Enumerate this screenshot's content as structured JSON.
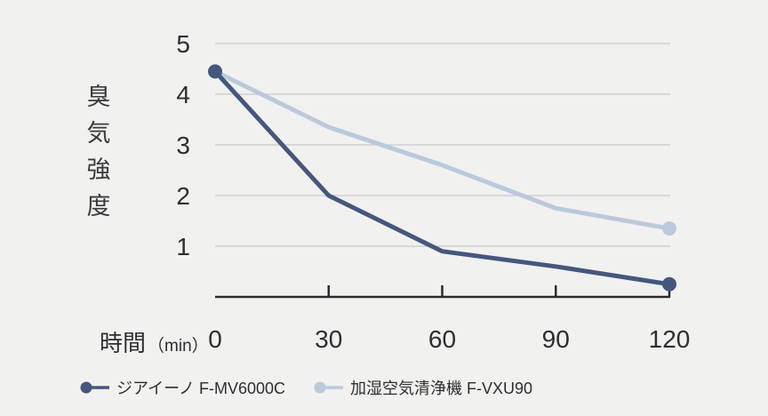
{
  "chart_data": {
    "type": "line",
    "x": [
      0,
      30,
      60,
      90,
      120
    ],
    "x_tick_labels": [
      "0",
      "30",
      "60",
      "90",
      "120"
    ],
    "y_ticks": [
      1,
      2,
      3,
      4,
      5
    ],
    "xlim": [
      0,
      120
    ],
    "ylim": [
      0,
      5
    ],
    "xlabel": "時間",
    "xlabel_unit": "（min）",
    "ylabel": "臭気強度",
    "grid": "horizontal-only",
    "legend_position": "bottom-left",
    "series": [
      {
        "name": "ジアイーノ F-MV6000C",
        "color": "#45577d",
        "values": [
          4.45,
          2.0,
          0.9,
          0.6,
          0.25
        ],
        "marker_indices": [
          0,
          4
        ]
      },
      {
        "name": "加湿空気清浄機 F-VXU90",
        "color": "#bbc9dd",
        "values": [
          4.45,
          3.35,
          2.6,
          1.75,
          1.35
        ],
        "marker_indices": [
          4
        ]
      }
    ],
    "colors": {
      "background": "#f1f1f0",
      "grid": "#c9c9c8",
      "axis": "#2c2c2c",
      "tick_text": "#2e2e2e"
    }
  }
}
